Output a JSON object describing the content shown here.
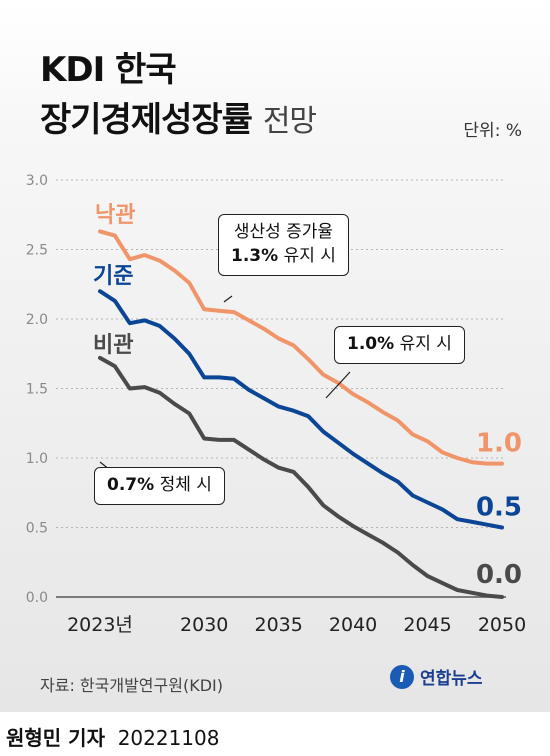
{
  "title": "KDI 한국",
  "title_line2": "장기경제성장률",
  "subtitle": "전망",
  "unit": "단위: %",
  "source": "자료: 한국개발연구원(KDI)",
  "logo": "연합뉴스",
  "logo_mark": "i",
  "credit_name": "원형민 기자",
  "credit_date": "20221108",
  "colors": {
    "optimistic": "#f0956a",
    "baseline": "#0b4596",
    "pessimistic": "#4a4a4a"
  },
  "callouts": {
    "optimistic_line1": "생산성 증가율",
    "optimistic_value": "1.3%",
    "optimistic_rest": "유지 시",
    "baseline_value": "1.0%",
    "baseline_rest": "유지 시",
    "pessimistic_value": "0.7%",
    "pessimistic_rest": "정체 시"
  },
  "chart_data": {
    "type": "line",
    "title": "KDI 한국 장기경제성장률 전망",
    "xlabel": "",
    "ylabel": "",
    "ylim": [
      0,
      3.0
    ],
    "xlim": [
      2023,
      2050
    ],
    "grid": true,
    "y_ticks": [
      "0.0",
      "0.5",
      "1.0",
      "1.5",
      "2.0",
      "2.5",
      "3.0"
    ],
    "x_ticks": [
      {
        "value": 2023,
        "label": "2023년"
      },
      {
        "value": 2030,
        "label": "2030"
      },
      {
        "value": 2035,
        "label": "2035"
      },
      {
        "value": 2040,
        "label": "2040"
      },
      {
        "value": 2045,
        "label": "2045"
      },
      {
        "value": 2050,
        "label": "2050"
      }
    ],
    "series": [
      {
        "name": "낙관",
        "end_label": "1.0",
        "color": "#f0956a",
        "x": [
          2023,
          2024,
          2025,
          2026,
          2027,
          2028,
          2029,
          2030,
          2031,
          2032,
          2033,
          2034,
          2035,
          2036,
          2037,
          2038,
          2039,
          2040,
          2041,
          2042,
          2043,
          2044,
          2045,
          2046,
          2047,
          2048,
          2049,
          2050
        ],
        "y": [
          2.63,
          2.6,
          2.43,
          2.46,
          2.42,
          2.35,
          2.26,
          2.07,
          2.06,
          2.05,
          1.99,
          1.93,
          1.86,
          1.81,
          1.71,
          1.6,
          1.54,
          1.46,
          1.4,
          1.33,
          1.27,
          1.17,
          1.12,
          1.04,
          1.0,
          0.97,
          0.96,
          0.96
        ]
      },
      {
        "name": "기준",
        "end_label": "0.5",
        "color": "#0b4596",
        "x": [
          2023,
          2024,
          2025,
          2026,
          2027,
          2028,
          2029,
          2030,
          2031,
          2032,
          2033,
          2034,
          2035,
          2036,
          2037,
          2038,
          2039,
          2040,
          2041,
          2042,
          2043,
          2044,
          2045,
          2046,
          2047,
          2048,
          2049,
          2050
        ],
        "y": [
          2.2,
          2.13,
          1.97,
          1.99,
          1.95,
          1.86,
          1.75,
          1.58,
          1.58,
          1.57,
          1.49,
          1.43,
          1.37,
          1.34,
          1.3,
          1.19,
          1.11,
          1.03,
          0.96,
          0.89,
          0.83,
          0.73,
          0.68,
          0.63,
          0.56,
          0.54,
          0.52,
          0.5
        ]
      },
      {
        "name": "비관",
        "end_label": "0.0",
        "color": "#4a4a4a",
        "x": [
          2023,
          2024,
          2025,
          2026,
          2027,
          2028,
          2029,
          2030,
          2031,
          2032,
          2033,
          2034,
          2035,
          2036,
          2037,
          2038,
          2039,
          2040,
          2041,
          2042,
          2043,
          2044,
          2045,
          2046,
          2047,
          2048,
          2049,
          2050
        ],
        "y": [
          1.72,
          1.66,
          1.5,
          1.51,
          1.47,
          1.39,
          1.32,
          1.14,
          1.13,
          1.13,
          1.06,
          0.99,
          0.93,
          0.9,
          0.79,
          0.66,
          0.58,
          0.51,
          0.45,
          0.39,
          0.32,
          0.23,
          0.15,
          0.1,
          0.05,
          0.03,
          0.01,
          0.0
        ]
      }
    ]
  }
}
